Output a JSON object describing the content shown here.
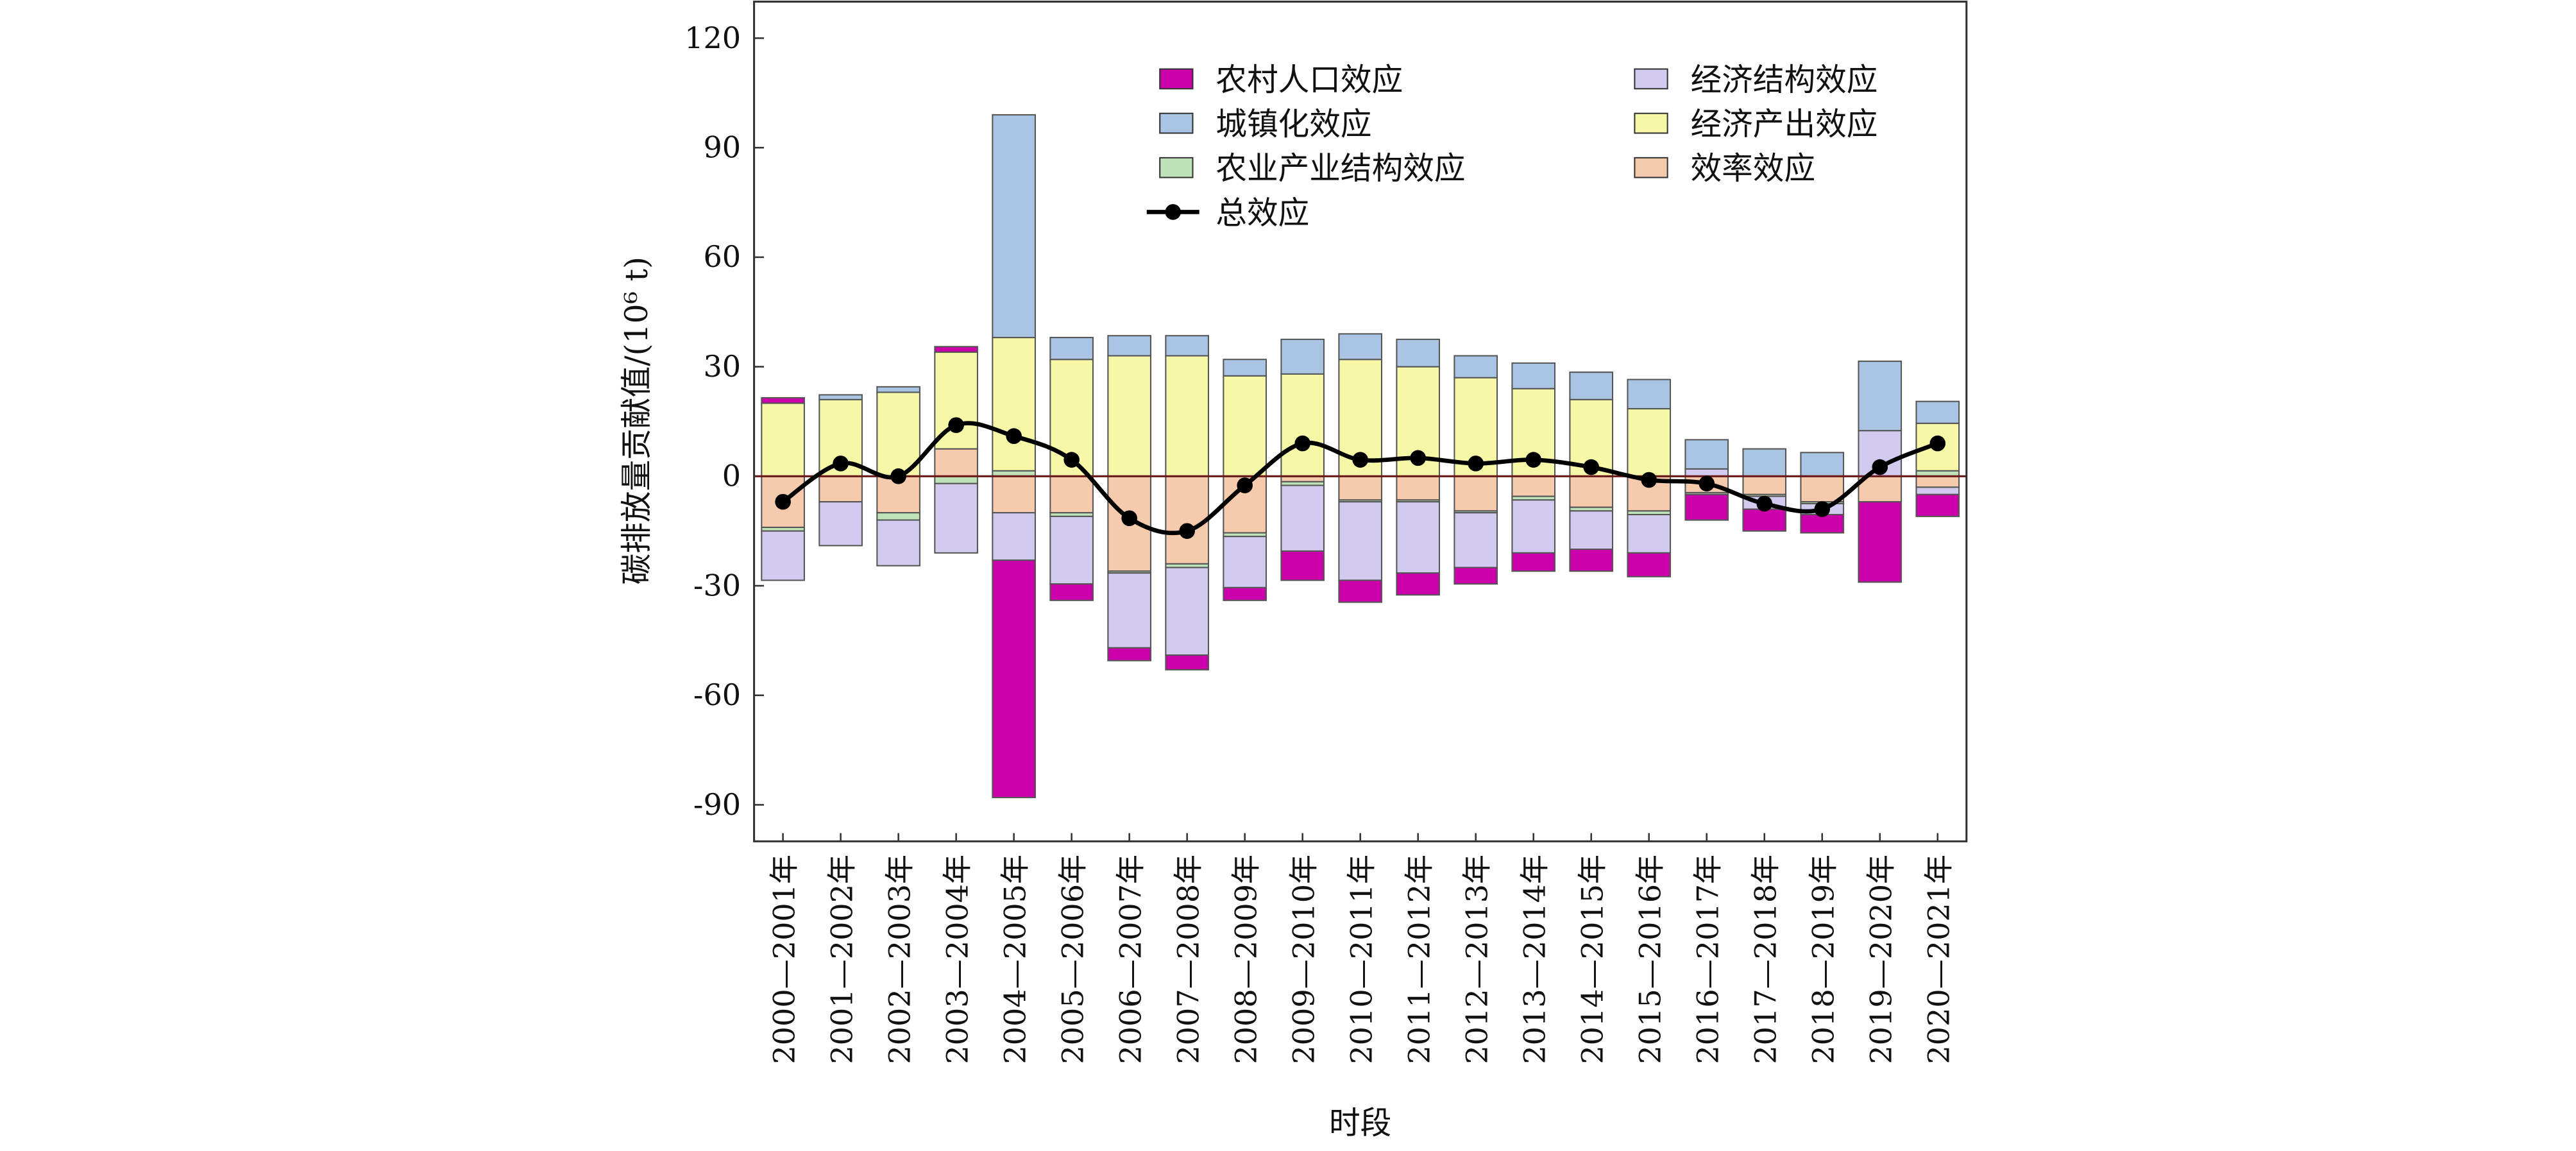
{
  "chart_data": {
    "type": "bar",
    "stacked": true,
    "x_label": "时段",
    "y_label": "碳排放量贡献值/(10⁶ t)",
    "categories": [
      "2000—2001年",
      "2001—2002年",
      "2002—2003年",
      "2003—2004年",
      "2004—2005年",
      "2005—2006年",
      "2006—2007年",
      "2007—2008年",
      "2008—2009年",
      "2009—2010年",
      "2010—2011年",
      "2011—2012年",
      "2012—2013年",
      "2013—2014年",
      "2014—2015年",
      "2015—2016年",
      "2016—2017年",
      "2017—2018年",
      "2018—2019年",
      "2019—2020年",
      "2020—2021年"
    ],
    "series": [
      {
        "name": "农村人口效应",
        "color": "#cc00aa",
        "values": [
          1.5,
          0,
          0,
          1.5,
          -65,
          -4.5,
          -3.5,
          -4,
          -3.5,
          -8,
          -6,
          -6,
          -4.5,
          -5,
          -6,
          -6.5,
          -7,
          -6,
          -5,
          -22,
          -6
        ]
      },
      {
        "name": "城镇化效应",
        "color": "#a9c5e3",
        "values": [
          0,
          1.3,
          1.5,
          0,
          61,
          6,
          5.5,
          5.5,
          4.5,
          9.5,
          7,
          7.5,
          6,
          7,
          7.5,
          8,
          8,
          7.5,
          6.5,
          19,
          6
        ]
      },
      {
        "name": "经济结构效应",
        "color": "#d2cbef",
        "values": [
          -13.5,
          -12,
          -12.5,
          -19,
          -13,
          -18.5,
          -20.5,
          -24,
          -14,
          -18,
          -21.5,
          -19.5,
          -15,
          -14.5,
          -10.5,
          -10.5,
          2,
          -3.5,
          -3,
          12.5,
          -2
        ]
      },
      {
        "name": "经济产出效应",
        "color": "#f7f7a8",
        "values": [
          20,
          21,
          23,
          26.5,
          36.5,
          32,
          33,
          33,
          27.5,
          28,
          32,
          30,
          27,
          24,
          21,
          18.5,
          0,
          0,
          0,
          0,
          13
        ]
      },
      {
        "name": "农业产业结构效应",
        "color": "#bfe3b8",
        "values": [
          -1,
          0,
          -2,
          -2,
          1.5,
          -1,
          -0.5,
          -1,
          -1,
          -1,
          -0.5,
          -0.5,
          -0.5,
          -1,
          -1,
          -1,
          -0.5,
          -0.5,
          -0.5,
          0,
          1.5
        ]
      },
      {
        "name": "效率效应",
        "color": "#f6cbad",
        "values": [
          -14,
          -7,
          -10,
          7.5,
          -10,
          -10,
          -26,
          -24,
          -15.5,
          -1.5,
          -6.5,
          -6.5,
          -9.5,
          -5.5,
          -8.5,
          -9.5,
          -4.5,
          -5,
          -7,
          -7,
          -3
        ]
      }
    ],
    "line": {
      "name": "总效应",
      "color": "#000000",
      "values": [
        -7,
        3.5,
        0,
        14,
        11,
        4.5,
        -11.5,
        -15,
        -2.5,
        9,
        4.5,
        5,
        3.5,
        4.5,
        2.5,
        -1,
        -2,
        -7.5,
        -9,
        2.5,
        9
      ]
    },
    "ylim": [
      -100,
      130
    ],
    "yticks": [
      -90,
      -60,
      -30,
      0,
      30,
      60,
      90,
      120
    ]
  }
}
